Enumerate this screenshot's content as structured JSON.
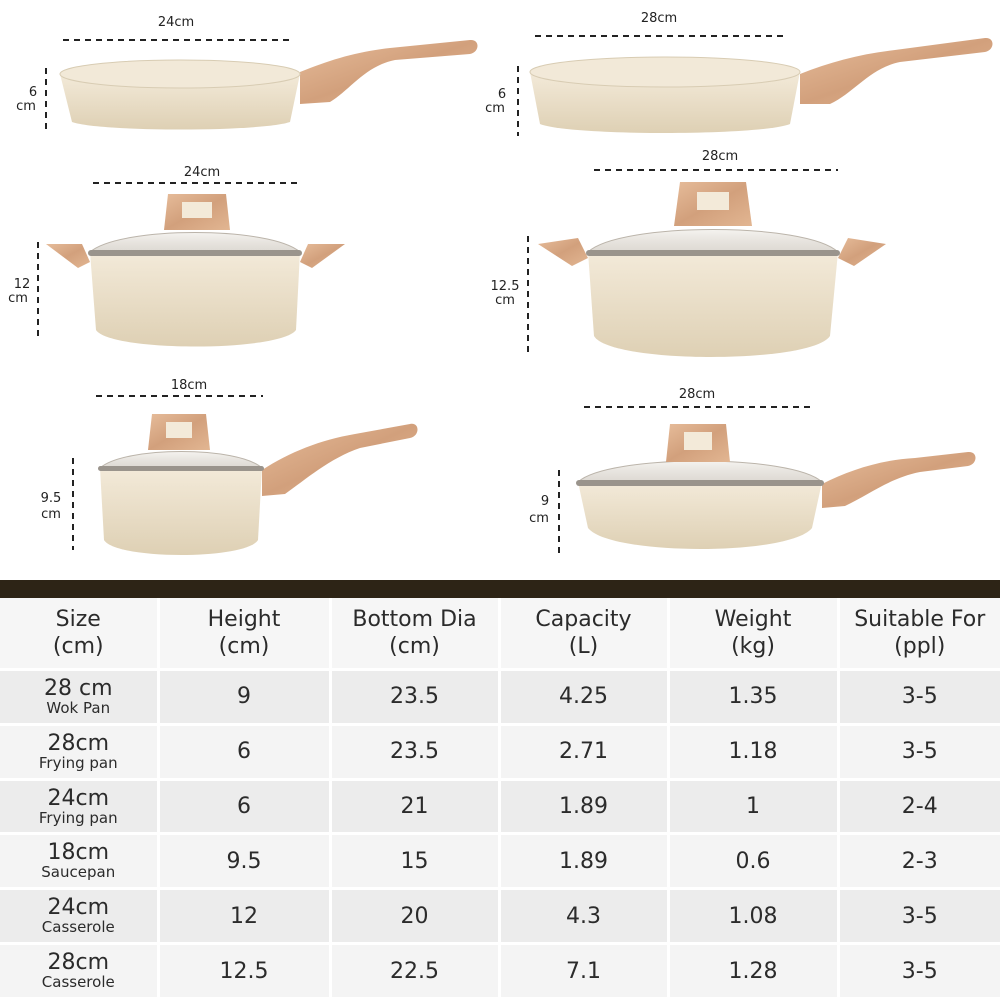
{
  "images": {
    "wok_pan_28": {
      "width_label": "28cm",
      "height_label_1": "9",
      "height_label_2": "cm"
    },
    "frying_pan_24": {
      "width_label": "24cm",
      "height_label_1": "6",
      "height_label_2": "cm"
    },
    "frying_pan_28": {
      "width_label": "28cm",
      "height_label_1": "6",
      "height_label_2": "cm"
    },
    "casserole_24": {
      "width_label": "24cm",
      "height_label_1": "12",
      "height_label_2": "cm"
    },
    "casserole_28": {
      "width_label": "28cm",
      "height_label_1": "12.5",
      "height_label_2": "cm"
    },
    "saucepan_18": {
      "width_label": "18cm",
      "height_label_1": "9.5",
      "height_label_2": "cm"
    }
  },
  "table": {
    "headers": [
      {
        "line1": "Size",
        "line2": "(cm)"
      },
      {
        "line1": "Height",
        "line2": "(cm)"
      },
      {
        "line1": "Bottom Dia",
        "line2": "(cm)"
      },
      {
        "line1": "Capacity",
        "line2": "(L)"
      },
      {
        "line1": "Weight",
        "line2": "(kg)"
      },
      {
        "line1": "Suitable For",
        "line2": "(ppl)"
      }
    ],
    "rows": [
      {
        "size": "28 cm",
        "type": "Wok Pan",
        "height": "9",
        "bottom_dia": "23.5",
        "capacity": "4.25",
        "weight": "1.35",
        "suitable": "3-5"
      },
      {
        "size": "28cm",
        "type": "Frying pan",
        "height": "6",
        "bottom_dia": "23.5",
        "capacity": "2.71",
        "weight": "1.18",
        "suitable": "3-5"
      },
      {
        "size": "24cm",
        "type": "Frying pan",
        "height": "6",
        "bottom_dia": "21",
        "capacity": "1.89",
        "weight": "1",
        "suitable": "2-4"
      },
      {
        "size": "18cm",
        "type": "Saucepan",
        "height": "9.5",
        "bottom_dia": "15",
        "capacity": "1.89",
        "weight": "0.6",
        "suitable": "2-3"
      },
      {
        "size": "24cm",
        "type": "Casserole",
        "height": "12",
        "bottom_dia": "20",
        "capacity": "4.3",
        "weight": "1.08",
        "suitable": "3-5"
      },
      {
        "size": "28cm",
        "type": "Casserole",
        "height": "12.5",
        "bottom_dia": "22.5",
        "capacity": "7.1",
        "weight": "1.28",
        "suitable": "3-5"
      }
    ]
  },
  "colors": {
    "pan_body": "#ece1cc",
    "pan_inner": "#f2e9d8",
    "handle_wood": "#d6a683",
    "divider": "#2d2416",
    "header_bg": "#f6f6f6",
    "row_bg_odd": "#ececec",
    "row_bg_even": "#f4f4f4"
  }
}
